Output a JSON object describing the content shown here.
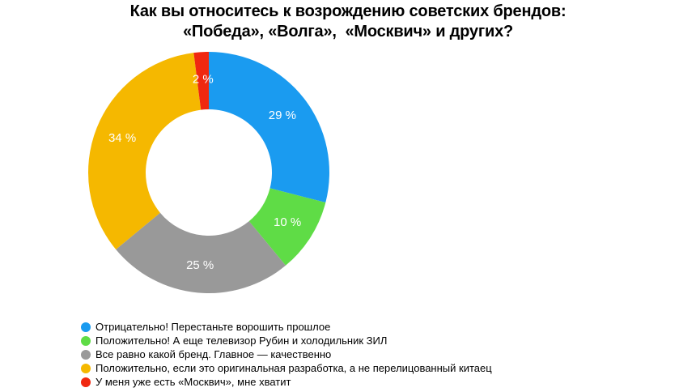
{
  "chart_data": {
    "type": "pie",
    "variant": "donut",
    "title_lines": [
      "Как вы относитесь к возрождению советских брендов:",
      "«Победа», «Волга»,  «Москвич» и других?"
    ],
    "slices": [
      {
        "name": "Отрицательно! Перестаньте ворошить прошлое",
        "value": 29,
        "label": "29 %",
        "color": "#1a9bf0"
      },
      {
        "name": "Положительно! А еще телевизор Рубин и холодильник ЗИЛ",
        "value": 10,
        "label": "10 %",
        "color": "#5fdc46"
      },
      {
        "name": "Все равно какой бренд. Главное — качественно",
        "value": 25,
        "label": "25 %",
        "color": "#999999"
      },
      {
        "name": "Положительно, если это оригинальная разработка, а не перелицованный китаец",
        "value": 34,
        "label": "34 %",
        "color": "#f5b800"
      },
      {
        "name": "У меня уже есть «Москвич», мне хватит",
        "value": 2,
        "label": "2 %",
        "color": "#f02810"
      }
    ],
    "legend_position": "bottom-left"
  }
}
